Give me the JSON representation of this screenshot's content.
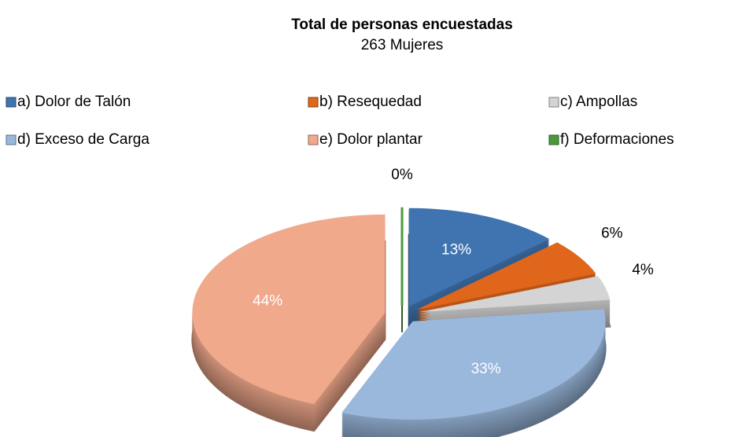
{
  "chart_data": {
    "type": "pie3d",
    "title": "Total de personas encuestadas",
    "subtitle": "263 Mujeres",
    "categories": [
      "a) Dolor de Talón",
      "b) Resequedad",
      "c) Ampollas",
      "d) Exceso de Carga",
      "e) Dolor plantar",
      "f) Deformaciones"
    ],
    "values": [
      13,
      6,
      4,
      33,
      44,
      0
    ],
    "value_labels": [
      "13%",
      "6%",
      "4%",
      "33%",
      "44%",
      "0%"
    ],
    "colors": [
      "#3f74b0",
      "#e0661c",
      "#d4d4d4",
      "#9ab8dc",
      "#f1a98c",
      "#4a9a3c"
    ],
    "legend": "top"
  }
}
